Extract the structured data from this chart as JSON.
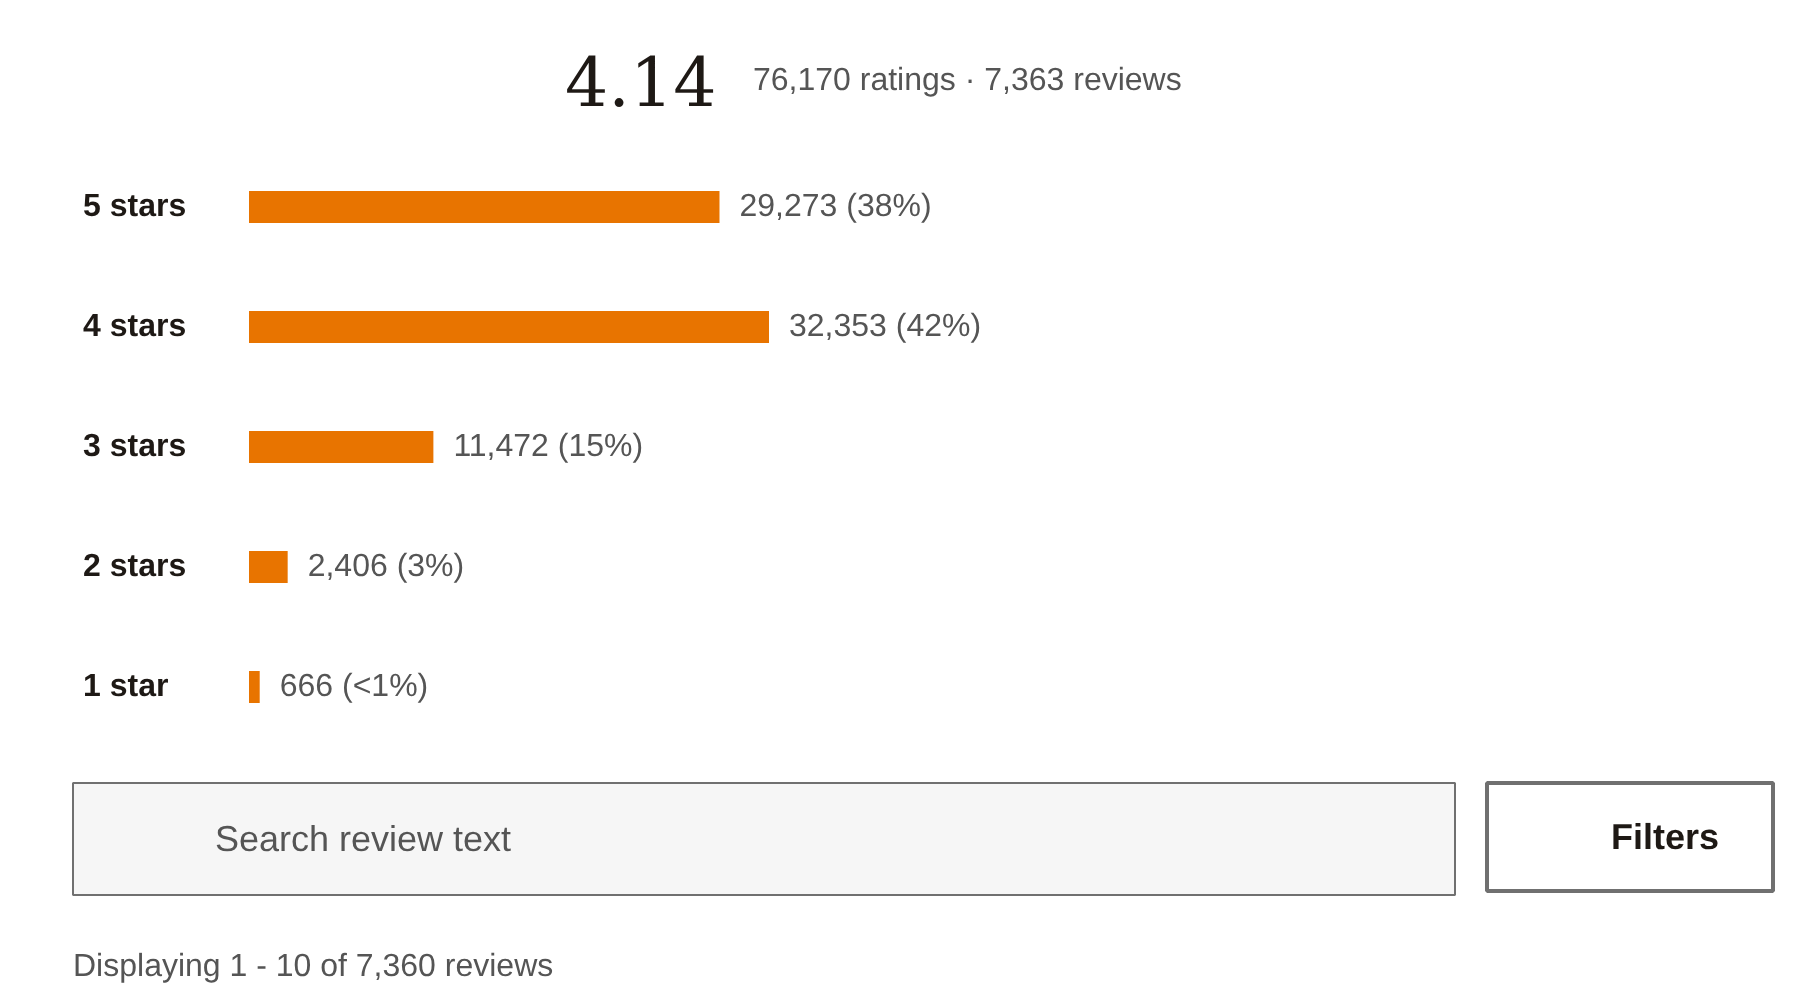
{
  "chart_data": {
    "type": "bar",
    "orientation": "horizontal",
    "title": "4.14",
    "subtitle": "76,170 ratings · 7,363 reviews",
    "categories": [
      "5 stars",
      "4 stars",
      "3 stars",
      "2 stars",
      "1 star"
    ],
    "values": [
      29273,
      32353,
      11472,
      2406,
      666
    ],
    "color": "#e87400",
    "value_labels": [
      "29,273 (38%)",
      "32,353 (42%)",
      "11,472 (15%)",
      "2,406 (3%)",
      "666 (<1%)"
    ],
    "tick_labels": "y",
    "annotations": [
      "Search review text",
      "Filters",
      "Displaying 1 - 10 of 7,360 reviews"
    ]
  }
}
